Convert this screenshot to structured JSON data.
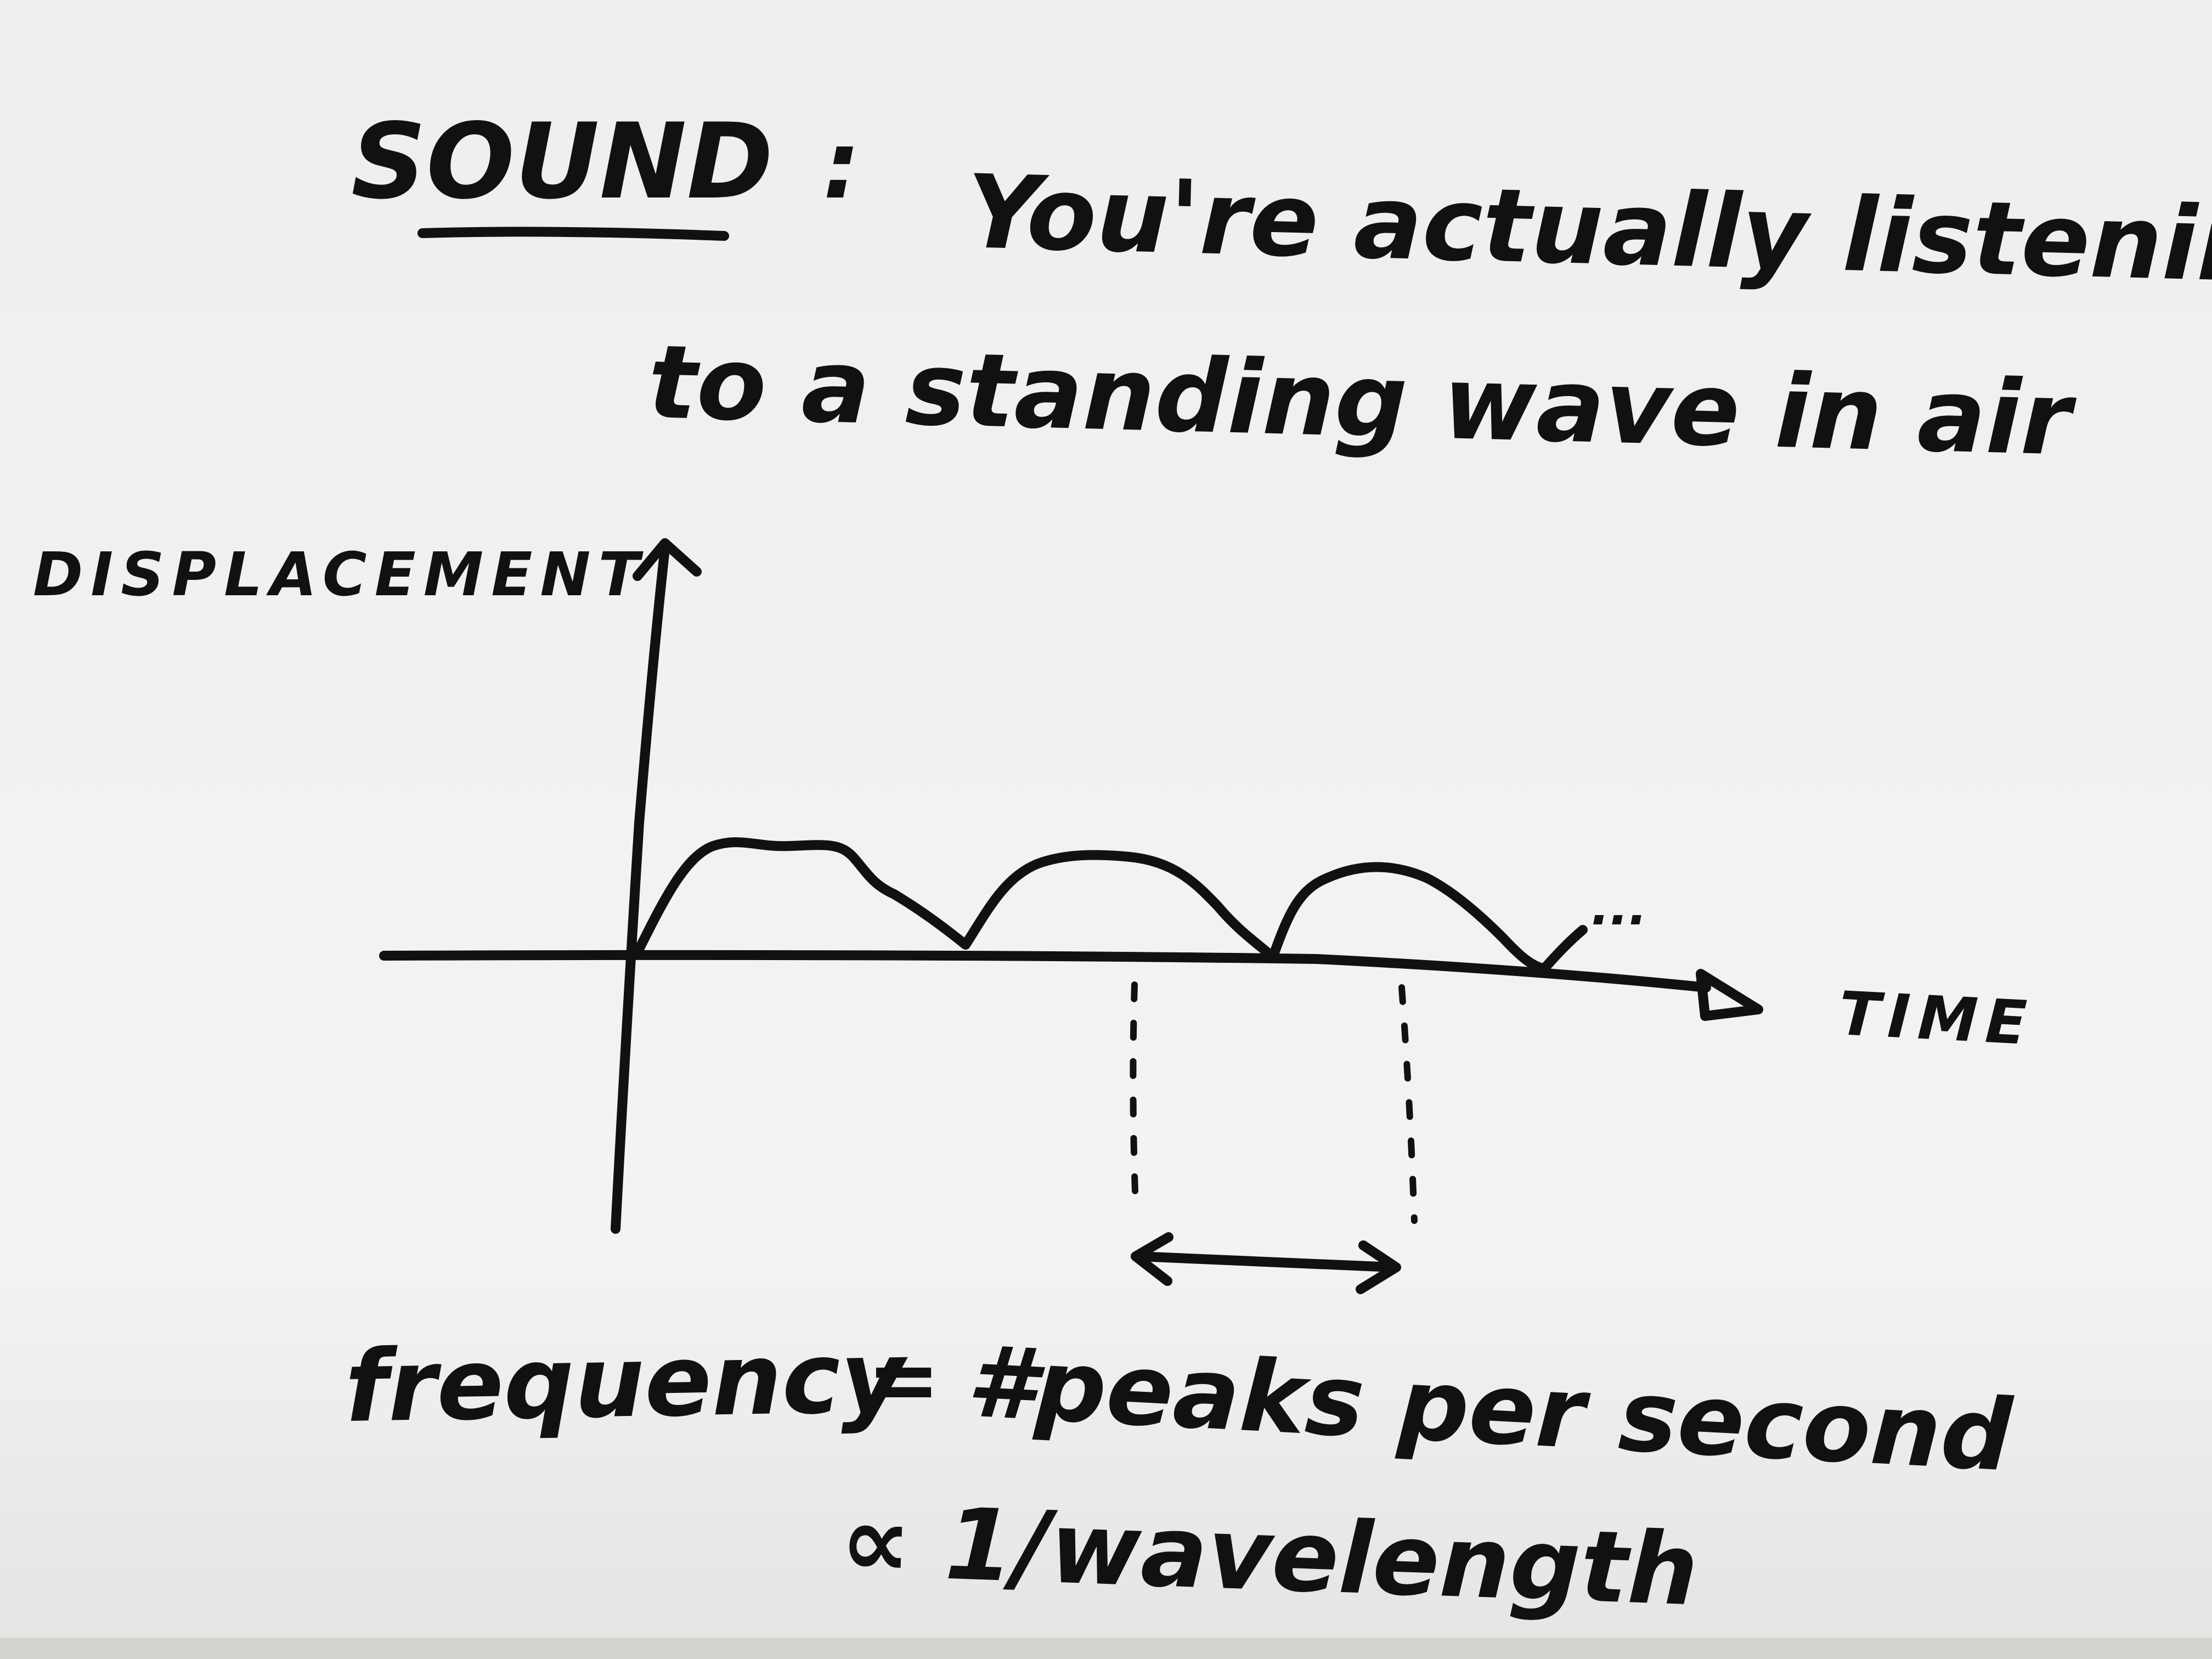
{
  "title": {
    "word": "SOUND",
    "separator": ":",
    "line1": "You're actually listening",
    "line2": "to a standing wave in air"
  },
  "axes": {
    "y_label": "DISPLACEMENT",
    "x_label": "TIME"
  },
  "continuation": "...",
  "formula": {
    "line1_left": "frequency",
    "line1_eq": "=",
    "line1_right": "#peaks per second",
    "line2": "∝ 1/wavelength"
  }
}
